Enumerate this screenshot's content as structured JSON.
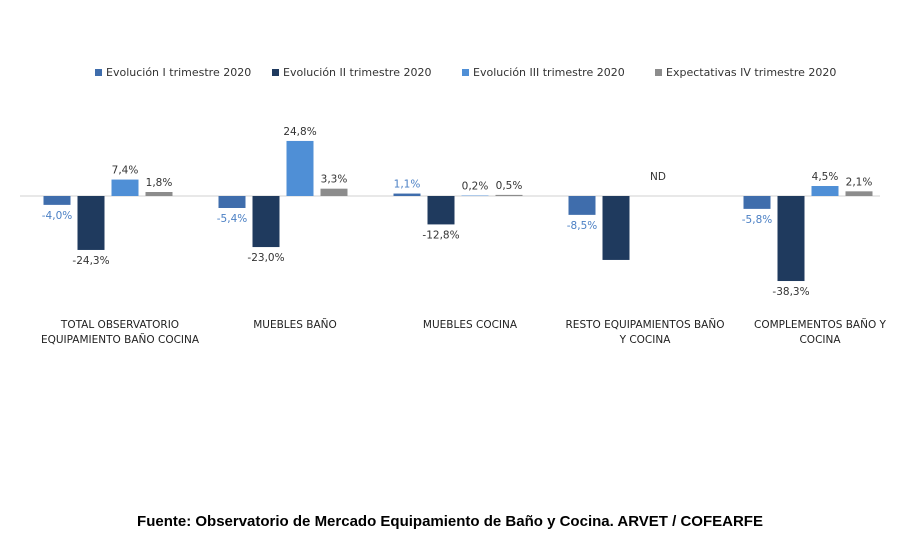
{
  "chart_data": {
    "type": "bar",
    "categories": [
      "TOTAL OBSERVATORIO EQUIPAMIENTO BAÑO COCINA",
      "MUEBLES BAÑO",
      "MUEBLES COCINA",
      "RESTO EQUIPAMIENTOS BAÑO Y COCINA",
      "COMPLEMENTOS BAÑO Y COCINA"
    ],
    "series": [
      {
        "name": "Evolución I trimestre 2020",
        "color": "#3f6dac",
        "values": [
          -4.0,
          -5.4,
          1.1,
          -8.5,
          -5.8
        ],
        "value_labels": [
          "-4,0%",
          "-5,4%",
          "1,1%",
          "-8,5%",
          "-5,8%"
        ]
      },
      {
        "name": "Evolución II trimestre 2020",
        "color": "#1f3a5e",
        "values": [
          -24.3,
          -23.0,
          -12.8,
          -28.8,
          -38.3
        ],
        "value_labels": [
          "-24,3%",
          "-23,0%",
          "-12,8%",
          null,
          "-38,3%"
        ]
      },
      {
        "name": "Evolución III trimestre 2020",
        "color": "#4f8fd6",
        "values": [
          7.4,
          24.8,
          0.2,
          null,
          4.5
        ],
        "value_labels": [
          "7,4%",
          "24,8%",
          "0,2%",
          null,
          "4,5%"
        ]
      },
      {
        "name": "Expectativas IV trimestre 2020",
        "color": "#8c8c8c",
        "values": [
          1.8,
          3.3,
          0.5,
          null,
          2.1
        ],
        "value_labels": [
          "1,8%",
          "3,3%",
          "0,5%",
          null,
          "2,1%"
        ]
      }
    ],
    "annotations": [
      {
        "category": 3,
        "text": "ND"
      }
    ],
    "legend": "top",
    "source": "Fuente: Observatorio de Mercado Equipamiento de Baño y Cocina. ARVET / COFEARFE"
  }
}
